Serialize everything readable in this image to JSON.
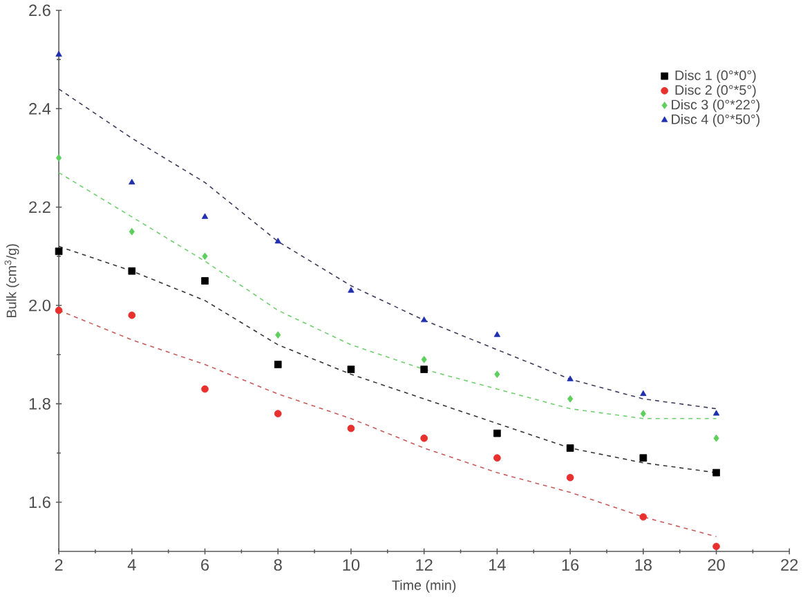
{
  "chart_data": {
    "type": "scatter",
    "xlabel": "Time (min)",
    "ylabel": "Bulk (cm$^{3}$/g)",
    "x": [
      2,
      4,
      6,
      8,
      10,
      12,
      14,
      16,
      18,
      20
    ],
    "xlim": [
      2,
      22
    ],
    "xticks": [
      2,
      4,
      6,
      8,
      10,
      12,
      14,
      16,
      18,
      20,
      22
    ],
    "ylim": [
      1.5,
      2.6
    ],
    "yticks": [
      1.6,
      1.8,
      {
        "value": 2,
        "label": "2.0"
      },
      2.2,
      2.4,
      2.6
    ],
    "legend": "top right",
    "grid": false,
    "series": [
      {
        "name": "Disc 1 (0°*0°)",
        "color": "#000000",
        "marker": "square",
        "values": [
          2.11,
          2.07,
          2.05,
          1.88,
          1.87,
          1.87,
          1.74,
          1.71,
          1.69,
          1.66
        ]
      },
      {
        "name": "Disc 2 (0°*5°)",
        "color": "#e8312f",
        "marker": "circle",
        "values": [
          1.99,
          1.98,
          1.83,
          1.78,
          1.75,
          1.73,
          1.69,
          1.65,
          1.57,
          1.51
        ]
      },
      {
        "name": "Disc 3 (0°*22°)",
        "color": "#5ccf5c",
        "marker": "diamond",
        "values": [
          2.3,
          2.15,
          2.1,
          1.94,
          null,
          1.89,
          1.86,
          1.81,
          1.78,
          1.73
        ]
      },
      {
        "name": "Disc 4 (0°*50°)",
        "color": "#1f2fb0",
        "marker": "triangle",
        "values": [
          2.51,
          2.25,
          2.18,
          2.13,
          2.03,
          1.97,
          1.94,
          1.85,
          1.82,
          1.78
        ]
      },
      {
        "type": "line",
        "color": "#333333",
        "line_style": "dashed",
        "values": [
          2.12,
          2.07,
          2.01,
          1.92,
          1.86,
          1.81,
          1.76,
          1.71,
          1.68,
          1.66
        ]
      },
      {
        "type": "line",
        "color": "#c85a5a",
        "line_style": "dashed",
        "values": [
          1.99,
          1.93,
          1.88,
          1.82,
          1.77,
          1.71,
          1.66,
          1.62,
          1.57,
          1.53
        ]
      },
      {
        "type": "line",
        "color": "#6fcf6f",
        "line_style": "dashed",
        "values": [
          2.27,
          2.18,
          2.09,
          1.99,
          1.92,
          1.87,
          1.83,
          1.79,
          1.77,
          1.77
        ]
      },
      {
        "type": "line",
        "color": "#3a3a5a",
        "line_style": "dashed",
        "values": [
          2.44,
          2.34,
          2.25,
          2.13,
          2.04,
          1.97,
          1.91,
          1.85,
          1.81,
          1.79
        ]
      }
    ]
  }
}
